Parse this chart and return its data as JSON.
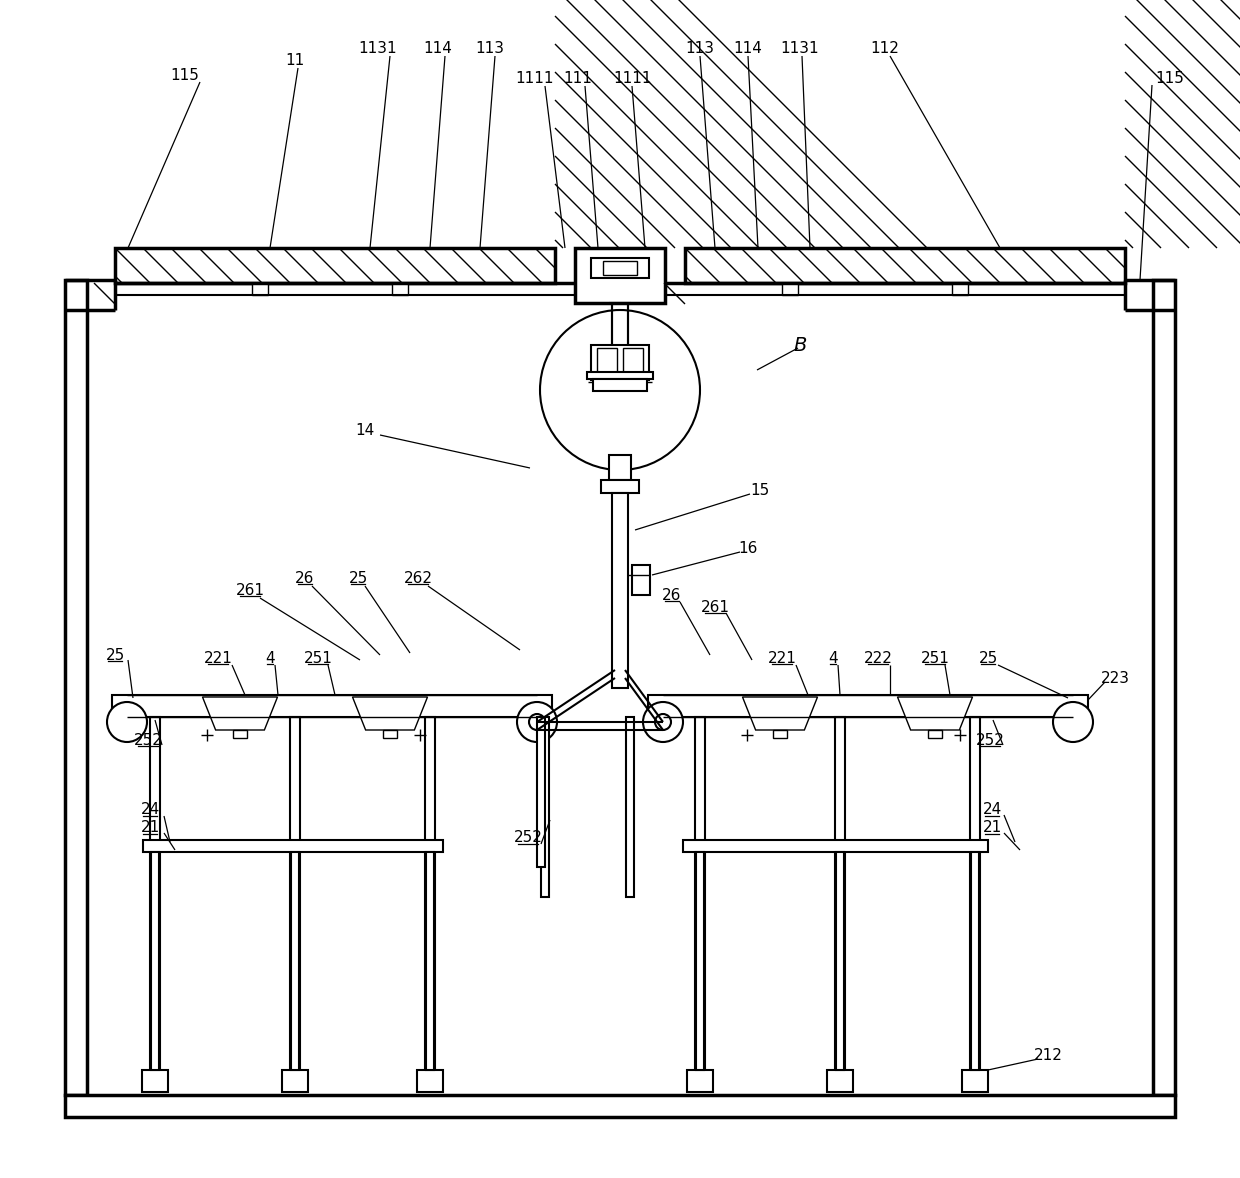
{
  "bg_color": "#ffffff",
  "line_color": "#000000",
  "lw_thin": 1.0,
  "lw_med": 1.5,
  "lw_thick": 2.5,
  "fig_width": 12.4,
  "fig_height": 11.78
}
